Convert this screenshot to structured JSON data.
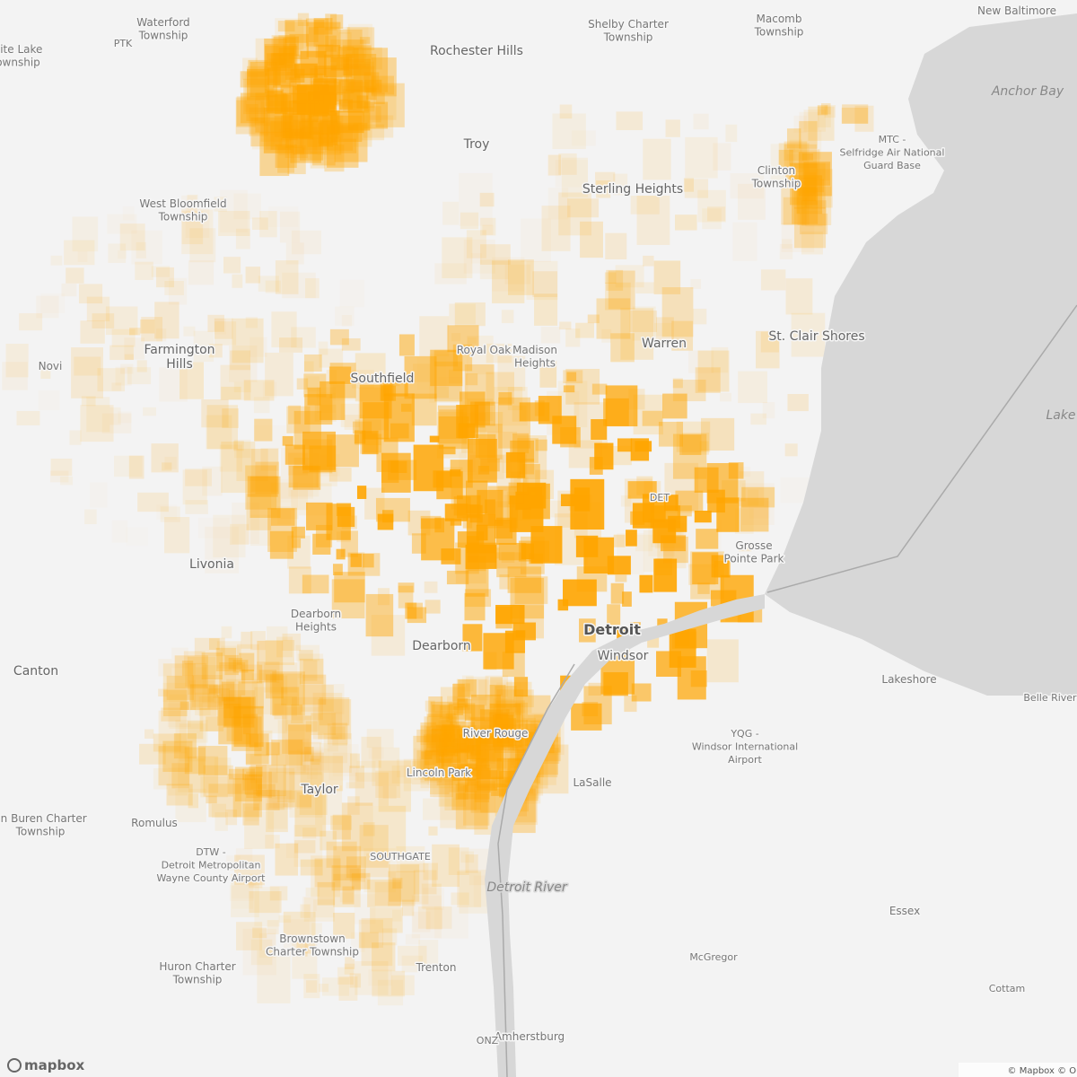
{
  "places": [
    {
      "lines": [
        "Waterford",
        "Township"
      ]
    },
    {
      "lines": [
        "PTK"
      ]
    },
    {
      "lines": [
        "hite Lake",
        "ownship"
      ]
    },
    {
      "lines": [
        "Rochester Hills"
      ]
    },
    {
      "lines": [
        "Shelby Charter",
        "Township"
      ]
    },
    {
      "lines": [
        "Macomb",
        "Township"
      ]
    },
    {
      "lines": [
        "New Baltimore"
      ]
    },
    {
      "lines": [
        "Anchor Bay"
      ]
    },
    {
      "lines": [
        "MTC -",
        "Selfridge Air National",
        "Guard Base"
      ]
    },
    {
      "lines": [
        "Troy"
      ]
    },
    {
      "lines": [
        "Clinton",
        "Township"
      ]
    },
    {
      "lines": [
        "Sterling Heights"
      ]
    },
    {
      "lines": [
        "West Bloomfield",
        "Township"
      ]
    },
    {
      "lines": [
        "Farmington",
        "Hills"
      ]
    },
    {
      "lines": [
        "Novi"
      ]
    },
    {
      "lines": [
        "Royal Oak"
      ]
    },
    {
      "lines": [
        "Madison",
        "Heights"
      ]
    },
    {
      "lines": [
        "Warren"
      ]
    },
    {
      "lines": [
        "St. Clair Shores"
      ]
    },
    {
      "lines": [
        "Southfield"
      ]
    },
    {
      "lines": [
        "Lake"
      ]
    },
    {
      "lines": [
        "DET"
      ]
    },
    {
      "lines": [
        "Grosse",
        "Pointe Park"
      ]
    },
    {
      "lines": [
        "Livonia"
      ]
    },
    {
      "lines": [
        "Dearborn",
        "Heights"
      ]
    },
    {
      "lines": [
        "Detroit"
      ]
    },
    {
      "lines": [
        "Windsor"
      ]
    },
    {
      "lines": [
        "Dearborn"
      ]
    },
    {
      "lines": [
        "Canton"
      ]
    },
    {
      "lines": [
        "Lakeshore"
      ]
    },
    {
      "lines": [
        "Belle River"
      ]
    },
    {
      "lines": [
        "YQG -",
        "Windsor International",
        "Airport"
      ]
    },
    {
      "lines": [
        "River Rouge"
      ]
    },
    {
      "lines": [
        "Lincoln Park"
      ]
    },
    {
      "lines": [
        "LaSalle"
      ]
    },
    {
      "lines": [
        "Taylor"
      ]
    },
    {
      "lines": [
        "an Buren Charter",
        "Township"
      ]
    },
    {
      "lines": [
        "Romulus"
      ]
    },
    {
      "lines": [
        "DTW -",
        "Detroit Metropolitan",
        "Wayne County Airport"
      ]
    },
    {
      "lines": [
        "SOUTHGATE"
      ]
    },
    {
      "lines": [
        "Detroit River"
      ]
    },
    {
      "lines": [
        "Essex"
      ]
    },
    {
      "lines": [
        "Brownstown",
        "Charter Township"
      ]
    },
    {
      "lines": [
        "McGregor"
      ]
    },
    {
      "lines": [
        "Huron Charter",
        "Township"
      ]
    },
    {
      "lines": [
        "Trenton"
      ]
    },
    {
      "lines": [
        "Cottam"
      ]
    },
    {
      "lines": [
        "Amherstburg"
      ]
    },
    {
      "lines": [
        "ONZ"
      ]
    }
  ],
  "logo": "mapbox",
  "attribution": "© Mapbox © OpenStreetMap"
}
